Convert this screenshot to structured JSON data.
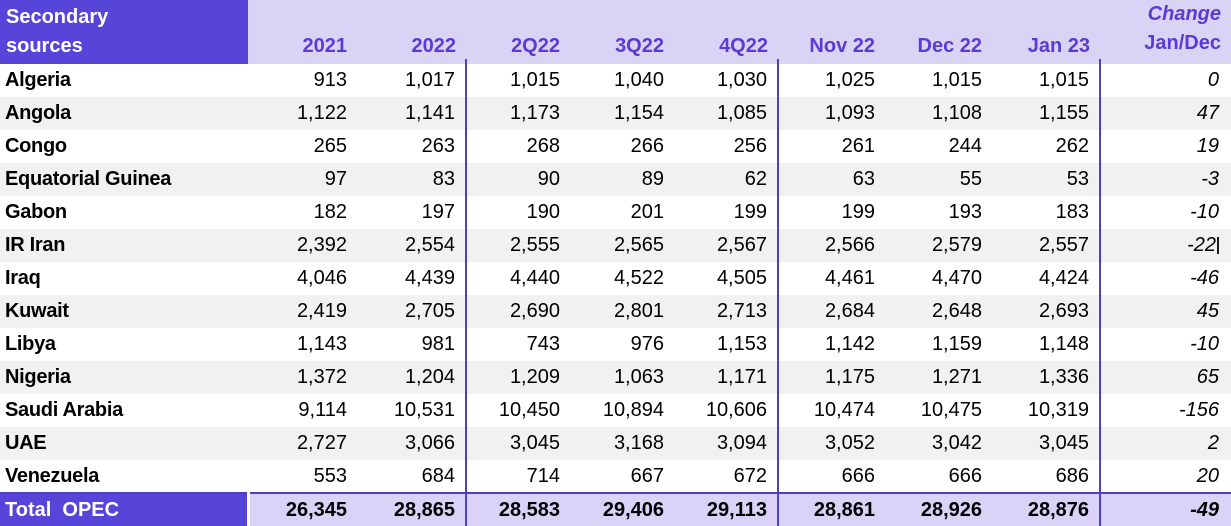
{
  "colors": {
    "header_background": "#5645D8",
    "header_band": "#D9D3F5",
    "header_text": "#5A3BD7",
    "column_divider": "#4D3EC7",
    "row_stripe": "#F1F1F1",
    "total_values_background": "#DAD2F7",
    "total_label_text": "#FFFFFF",
    "data_text": "#000000"
  },
  "table": {
    "title": {
      "line1": "Secondary",
      "line2": "sources"
    },
    "columns": [
      "2021",
      "2022",
      "2Q22",
      "3Q22",
      "4Q22",
      "Nov 22",
      "Dec 22",
      "Jan 23"
    ],
    "change_header": {
      "line1": "Change",
      "line2": "Jan/Dec"
    },
    "rows": [
      {
        "country": "Algeria",
        "values": [
          "913",
          "1,017",
          "1,015",
          "1,040",
          "1,030",
          "1,025",
          "1,015",
          "1,015"
        ],
        "change": "0"
      },
      {
        "country": "Angola",
        "values": [
          "1,122",
          "1,141",
          "1,173",
          "1,154",
          "1,085",
          "1,093",
          "1,108",
          "1,155"
        ],
        "change": "47"
      },
      {
        "country": "Congo",
        "values": [
          "265",
          "263",
          "268",
          "266",
          "256",
          "261",
          "244",
          "262"
        ],
        "change": "19"
      },
      {
        "country": "Equatorial Guinea",
        "values": [
          "97",
          "83",
          "90",
          "89",
          "62",
          "63",
          "55",
          "53"
        ],
        "change": "-3"
      },
      {
        "country": "Gabon",
        "values": [
          "182",
          "197",
          "190",
          "201",
          "199",
          "199",
          "193",
          "183"
        ],
        "change": "-10"
      },
      {
        "country": "IR Iran",
        "values": [
          "2,392",
          "2,554",
          "2,555",
          "2,565",
          "2,567",
          "2,566",
          "2,579",
          "2,557"
        ],
        "change": "-22",
        "caret": true
      },
      {
        "country": "Iraq",
        "values": [
          "4,046",
          "4,439",
          "4,440",
          "4,522",
          "4,505",
          "4,461",
          "4,470",
          "4,424"
        ],
        "change": "-46"
      },
      {
        "country": "Kuwait",
        "values": [
          "2,419",
          "2,705",
          "2,690",
          "2,801",
          "2,713",
          "2,684",
          "2,648",
          "2,693"
        ],
        "change": "45"
      },
      {
        "country": "Libya",
        "values": [
          "1,143",
          "981",
          "743",
          "976",
          "1,153",
          "1,142",
          "1,159",
          "1,148"
        ],
        "change": "-10"
      },
      {
        "country": "Nigeria",
        "values": [
          "1,372",
          "1,204",
          "1,209",
          "1,063",
          "1,171",
          "1,175",
          "1,271",
          "1,336"
        ],
        "change": "65"
      },
      {
        "country": "Saudi Arabia",
        "values": [
          "9,114",
          "10,531",
          "10,450",
          "10,894",
          "10,606",
          "10,474",
          "10,475",
          "10,319"
        ],
        "change": "-156"
      },
      {
        "country": "UAE",
        "values": [
          "2,727",
          "3,066",
          "3,045",
          "3,168",
          "3,094",
          "3,052",
          "3,042",
          "3,045"
        ],
        "change": "2"
      },
      {
        "country": "Venezuela",
        "values": [
          "553",
          "684",
          "714",
          "667",
          "672",
          "666",
          "666",
          "686"
        ],
        "change": "20"
      }
    ],
    "total": {
      "label": "Total  OPEC",
      "values": [
        "26,345",
        "28,865",
        "28,583",
        "29,406",
        "29,113",
        "28,861",
        "28,926",
        "28,876"
      ],
      "change": "-49"
    }
  }
}
